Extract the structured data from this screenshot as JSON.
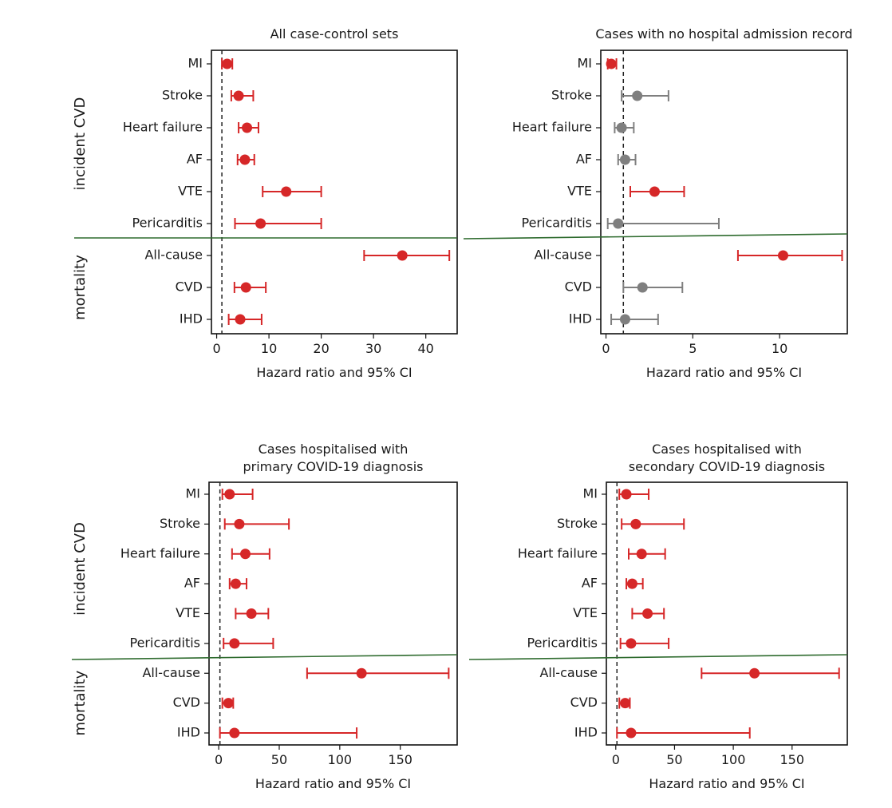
{
  "colors": {
    "significant": "#d62728",
    "not_significant": "#7f7f7f",
    "separator": "#2e6b2e",
    "reference_line": "#222222"
  },
  "chart_data": [
    {
      "type": "forest",
      "title_lines": [
        "All case-control sets"
      ],
      "xlabel": "Hazard ratio and 95% CI",
      "xlim": [
        -1,
        46
      ],
      "xticks": [
        0,
        10,
        20,
        30,
        40
      ],
      "reference_line": 1,
      "groups": [
        {
          "label": "incident CVD",
          "outcomes": [
            "MI",
            "Stroke",
            "Heart failure",
            "AF",
            "VTE",
            "Pericarditis"
          ]
        },
        {
          "label": "mortality",
          "outcomes": [
            "All-cause",
            "CVD",
            "IHD"
          ]
        }
      ],
      "series": [
        {
          "outcome": "MI",
          "hr": 2.0,
          "ci": [
            1.0,
            3.0
          ],
          "significant": true
        },
        {
          "outcome": "Stroke",
          "hr": 4.2,
          "ci": [
            2.8,
            7.0
          ],
          "significant": true
        },
        {
          "outcome": "Heart failure",
          "hr": 5.8,
          "ci": [
            4.2,
            8.0
          ],
          "significant": true
        },
        {
          "outcome": "AF",
          "hr": 5.4,
          "ci": [
            4.0,
            7.2
          ],
          "significant": true
        },
        {
          "outcome": "VTE",
          "hr": 13.3,
          "ci": [
            8.8,
            20.0
          ],
          "significant": true
        },
        {
          "outcome": "Pericarditis",
          "hr": 8.4,
          "ci": [
            3.5,
            20.0
          ],
          "significant": true
        },
        {
          "outcome": "All-cause",
          "hr": 35.5,
          "ci": [
            28.2,
            44.5
          ],
          "significant": true
        },
        {
          "outcome": "CVD",
          "hr": 5.6,
          "ci": [
            3.4,
            9.4
          ],
          "significant": true
        },
        {
          "outcome": "IHD",
          "hr": 4.5,
          "ci": [
            2.3,
            8.6
          ],
          "significant": true
        }
      ]
    },
    {
      "type": "forest",
      "title_lines": [
        "Cases with no hospital admission record"
      ],
      "xlabel": "Hazard ratio and 95% CI",
      "xlim": [
        -0.3,
        13.9
      ],
      "xticks": [
        0,
        5,
        10
      ],
      "reference_line": 1,
      "groups": [
        {
          "label": "incident CVD",
          "outcomes": [
            "MI",
            "Stroke",
            "Heart failure",
            "AF",
            "VTE",
            "Pericarditis"
          ]
        },
        {
          "label": "mortality",
          "outcomes": [
            "All-cause",
            "CVD",
            "IHD"
          ]
        }
      ],
      "series": [
        {
          "outcome": "MI",
          "hr": 0.3,
          "ci": [
            0.1,
            0.6
          ],
          "significant": true
        },
        {
          "outcome": "Stroke",
          "hr": 1.8,
          "ci": [
            0.9,
            3.6
          ],
          "significant": false
        },
        {
          "outcome": "Heart failure",
          "hr": 0.9,
          "ci": [
            0.5,
            1.6
          ],
          "significant": false
        },
        {
          "outcome": "AF",
          "hr": 1.1,
          "ci": [
            0.7,
            1.7
          ],
          "significant": false
        },
        {
          "outcome": "VTE",
          "hr": 2.8,
          "ci": [
            1.4,
            4.5
          ],
          "significant": true
        },
        {
          "outcome": "Pericarditis",
          "hr": 0.7,
          "ci": [
            0.1,
            6.5
          ],
          "significant": false
        },
        {
          "outcome": "All-cause",
          "hr": 10.2,
          "ci": [
            7.6,
            13.6
          ],
          "significant": true
        },
        {
          "outcome": "CVD",
          "hr": 2.1,
          "ci": [
            1.0,
            4.4
          ],
          "significant": false
        },
        {
          "outcome": "IHD",
          "hr": 1.1,
          "ci": [
            0.3,
            3.0
          ],
          "significant": false
        }
      ]
    },
    {
      "type": "forest",
      "title_lines": [
        "Cases hospitalised with",
        "primary COVID-19 diagnosis"
      ],
      "xlabel": "Hazard ratio and 95% CI",
      "xlim": [
        -8,
        197
      ],
      "xticks": [
        0,
        50,
        100,
        150
      ],
      "reference_line": 1,
      "groups": [
        {
          "label": "incident CVD",
          "outcomes": [
            "MI",
            "Stroke",
            "Heart failure",
            "AF",
            "VTE",
            "Pericarditis"
          ]
        },
        {
          "label": "mortality",
          "outcomes": [
            "All-cause",
            "CVD",
            "IHD"
          ]
        }
      ],
      "series": [
        {
          "outcome": "MI",
          "hr": 9,
          "ci": [
            3,
            28
          ],
          "significant": true
        },
        {
          "outcome": "Stroke",
          "hr": 17,
          "ci": [
            5,
            58
          ],
          "significant": true
        },
        {
          "outcome": "Heart failure",
          "hr": 22,
          "ci": [
            11,
            42
          ],
          "significant": true
        },
        {
          "outcome": "AF",
          "hr": 14,
          "ci": [
            9,
            23
          ],
          "significant": true
        },
        {
          "outcome": "VTE",
          "hr": 27,
          "ci": [
            14,
            41
          ],
          "significant": true
        },
        {
          "outcome": "Pericarditis",
          "hr": 13,
          "ci": [
            4,
            45
          ],
          "significant": true
        },
        {
          "outcome": "All-cause",
          "hr": 118,
          "ci": [
            73,
            190
          ],
          "significant": true
        },
        {
          "outcome": "CVD",
          "hr": 8,
          "ci": [
            3,
            12
          ],
          "significant": true
        },
        {
          "outcome": "IHD",
          "hr": 13,
          "ci": [
            1,
            114
          ],
          "significant": true
        }
      ]
    },
    {
      "type": "forest",
      "title_lines": [
        "Cases hospitalised with",
        "secondary COVID-19 diagnosis"
      ],
      "xlabel": "Hazard ratio and 95% CI",
      "xlim": [
        -8,
        197
      ],
      "xticks": [
        0,
        50,
        100,
        150
      ],
      "reference_line": 1,
      "groups": [
        {
          "label": "incident CVD",
          "outcomes": [
            "MI",
            "Stroke",
            "Heart failure",
            "AF",
            "VTE",
            "Pericarditis"
          ]
        },
        {
          "label": "mortality",
          "outcomes": [
            "All-cause",
            "CVD",
            "IHD"
          ]
        }
      ],
      "series": [
        {
          "outcome": "MI",
          "hr": 9,
          "ci": [
            3,
            28
          ],
          "significant": true
        },
        {
          "outcome": "Stroke",
          "hr": 17,
          "ci": [
            5,
            58
          ],
          "significant": true
        },
        {
          "outcome": "Heart failure",
          "hr": 22,
          "ci": [
            11,
            42
          ],
          "significant": true
        },
        {
          "outcome": "AF",
          "hr": 14,
          "ci": [
            9,
            23
          ],
          "significant": true
        },
        {
          "outcome": "VTE",
          "hr": 27,
          "ci": [
            14,
            41
          ],
          "significant": true
        },
        {
          "outcome": "Pericarditis",
          "hr": 13,
          "ci": [
            4,
            45
          ],
          "significant": true
        },
        {
          "outcome": "All-cause",
          "hr": 118,
          "ci": [
            73,
            190
          ],
          "significant": true
        },
        {
          "outcome": "CVD",
          "hr": 8,
          "ci": [
            3,
            12
          ],
          "significant": true
        },
        {
          "outcome": "IHD",
          "hr": 13,
          "ci": [
            1,
            114
          ],
          "significant": true
        }
      ]
    }
  ]
}
